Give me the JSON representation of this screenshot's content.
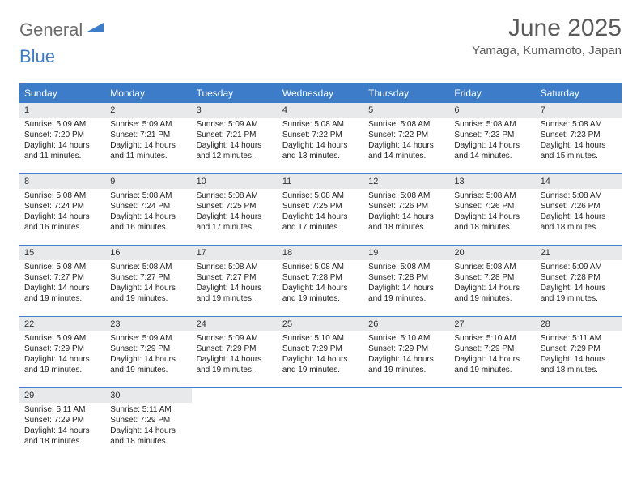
{
  "brand": {
    "word1": "General",
    "word2": "Blue"
  },
  "title": "June 2025",
  "location": "Yamaga, Kumamoto, Japan",
  "colors": {
    "header_bg": "#3d7cc9",
    "header_fg": "#ffffff",
    "daynum_bg": "#e7e9eb",
    "text": "#222222",
    "rule": "#3d7cc9"
  },
  "layout": {
    "columns": 7,
    "rows": 5,
    "first_weekday": "Sunday"
  },
  "weekdays": [
    "Sunday",
    "Monday",
    "Tuesday",
    "Wednesday",
    "Thursday",
    "Friday",
    "Saturday"
  ],
  "days": [
    {
      "n": "1",
      "sr": "5:09 AM",
      "ss": "7:20 PM",
      "dl": "14 hours and 11 minutes."
    },
    {
      "n": "2",
      "sr": "5:09 AM",
      "ss": "7:21 PM",
      "dl": "14 hours and 11 minutes."
    },
    {
      "n": "3",
      "sr": "5:09 AM",
      "ss": "7:21 PM",
      "dl": "14 hours and 12 minutes."
    },
    {
      "n": "4",
      "sr": "5:08 AM",
      "ss": "7:22 PM",
      "dl": "14 hours and 13 minutes."
    },
    {
      "n": "5",
      "sr": "5:08 AM",
      "ss": "7:22 PM",
      "dl": "14 hours and 14 minutes."
    },
    {
      "n": "6",
      "sr": "5:08 AM",
      "ss": "7:23 PM",
      "dl": "14 hours and 14 minutes."
    },
    {
      "n": "7",
      "sr": "5:08 AM",
      "ss": "7:23 PM",
      "dl": "14 hours and 15 minutes."
    },
    {
      "n": "8",
      "sr": "5:08 AM",
      "ss": "7:24 PM",
      "dl": "14 hours and 16 minutes."
    },
    {
      "n": "9",
      "sr": "5:08 AM",
      "ss": "7:24 PM",
      "dl": "14 hours and 16 minutes."
    },
    {
      "n": "10",
      "sr": "5:08 AM",
      "ss": "7:25 PM",
      "dl": "14 hours and 17 minutes."
    },
    {
      "n": "11",
      "sr": "5:08 AM",
      "ss": "7:25 PM",
      "dl": "14 hours and 17 minutes."
    },
    {
      "n": "12",
      "sr": "5:08 AM",
      "ss": "7:26 PM",
      "dl": "14 hours and 18 minutes."
    },
    {
      "n": "13",
      "sr": "5:08 AM",
      "ss": "7:26 PM",
      "dl": "14 hours and 18 minutes."
    },
    {
      "n": "14",
      "sr": "5:08 AM",
      "ss": "7:26 PM",
      "dl": "14 hours and 18 minutes."
    },
    {
      "n": "15",
      "sr": "5:08 AM",
      "ss": "7:27 PM",
      "dl": "14 hours and 19 minutes."
    },
    {
      "n": "16",
      "sr": "5:08 AM",
      "ss": "7:27 PM",
      "dl": "14 hours and 19 minutes."
    },
    {
      "n": "17",
      "sr": "5:08 AM",
      "ss": "7:27 PM",
      "dl": "14 hours and 19 minutes."
    },
    {
      "n": "18",
      "sr": "5:08 AM",
      "ss": "7:28 PM",
      "dl": "14 hours and 19 minutes."
    },
    {
      "n": "19",
      "sr": "5:08 AM",
      "ss": "7:28 PM",
      "dl": "14 hours and 19 minutes."
    },
    {
      "n": "20",
      "sr": "5:08 AM",
      "ss": "7:28 PM",
      "dl": "14 hours and 19 minutes."
    },
    {
      "n": "21",
      "sr": "5:09 AM",
      "ss": "7:28 PM",
      "dl": "14 hours and 19 minutes."
    },
    {
      "n": "22",
      "sr": "5:09 AM",
      "ss": "7:29 PM",
      "dl": "14 hours and 19 minutes."
    },
    {
      "n": "23",
      "sr": "5:09 AM",
      "ss": "7:29 PM",
      "dl": "14 hours and 19 minutes."
    },
    {
      "n": "24",
      "sr": "5:09 AM",
      "ss": "7:29 PM",
      "dl": "14 hours and 19 minutes."
    },
    {
      "n": "25",
      "sr": "5:10 AM",
      "ss": "7:29 PM",
      "dl": "14 hours and 19 minutes."
    },
    {
      "n": "26",
      "sr": "5:10 AM",
      "ss": "7:29 PM",
      "dl": "14 hours and 19 minutes."
    },
    {
      "n": "27",
      "sr": "5:10 AM",
      "ss": "7:29 PM",
      "dl": "14 hours and 19 minutes."
    },
    {
      "n": "28",
      "sr": "5:11 AM",
      "ss": "7:29 PM",
      "dl": "14 hours and 18 minutes."
    },
    {
      "n": "29",
      "sr": "5:11 AM",
      "ss": "7:29 PM",
      "dl": "14 hours and 18 minutes."
    },
    {
      "n": "30",
      "sr": "5:11 AM",
      "ss": "7:29 PM",
      "dl": "14 hours and 18 minutes."
    }
  ],
  "labels": {
    "sunrise": "Sunrise:",
    "sunset": "Sunset:",
    "daylight": "Daylight:"
  }
}
